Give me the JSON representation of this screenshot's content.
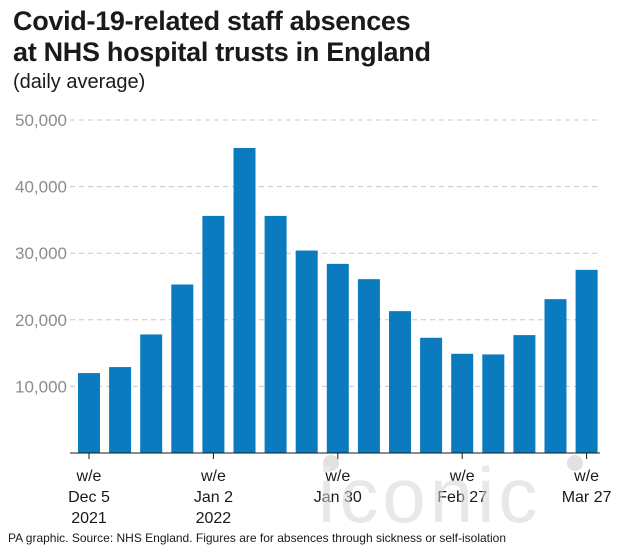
{
  "title_line1": "Covid-19-related staff absences",
  "title_line2": "at NHS hospital trusts in England",
  "subtitle": "(daily average)",
  "footer": "PA graphic. Source: NHS England. Figures are for absences through sickness or self-isolation",
  "watermark": "iconic",
  "colors": {
    "bar": "#0a7bbf",
    "grid": "#c8c8c8",
    "axis": "#1a1a1a",
    "tick": "#8c8c8c"
  },
  "chart_data": {
    "type": "bar",
    "title": "Covid-19-related staff absences at NHS hospital trusts in England",
    "subtitle": "(daily average)",
    "categories": [
      "w/e Dec 5 2021",
      "w/e Dec 12 2021",
      "w/e Dec 19 2021",
      "w/e Dec 26 2021",
      "w/e Jan 2 2022",
      "w/e Jan 9 2022",
      "w/e Jan 16 2022",
      "w/e Jan 23 2022",
      "w/e Jan 30 2022",
      "w/e Feb 6 2022",
      "w/e Feb 13 2022",
      "w/e Feb 20 2022",
      "w/e Feb 27 2022",
      "w/e Mar 6 2022",
      "w/e Mar 13 2022",
      "w/e Mar 20 2022",
      "w/e Mar 27 2022"
    ],
    "values": [
      12000,
      12900,
      17800,
      25300,
      35600,
      45800,
      35600,
      30400,
      28400,
      26100,
      21300,
      17300,
      14900,
      14800,
      17700,
      23100,
      27500
    ],
    "ylim": [
      0,
      50000
    ],
    "yticks": [
      {
        "value": 10000,
        "label": "10,000"
      },
      {
        "value": 20000,
        "label": "20,000"
      },
      {
        "value": 30000,
        "label": "30,000"
      },
      {
        "value": 40000,
        "label": "40,000"
      },
      {
        "value": 50000,
        "label": "50,000"
      }
    ],
    "xticks": [
      {
        "index": 0,
        "lines": [
          "w/e",
          "Dec 5",
          "2021"
        ]
      },
      {
        "index": 4,
        "lines": [
          "w/e",
          "Jan 2",
          "2022"
        ]
      },
      {
        "index": 8,
        "lines": [
          "w/e",
          "Jan 30"
        ]
      },
      {
        "index": 12,
        "lines": [
          "w/e",
          "Feb 27"
        ]
      },
      {
        "index": 16,
        "lines": [
          "w/e",
          "Mar 27"
        ]
      }
    ],
    "grid": true,
    "xlabel": "",
    "ylabel": ""
  }
}
